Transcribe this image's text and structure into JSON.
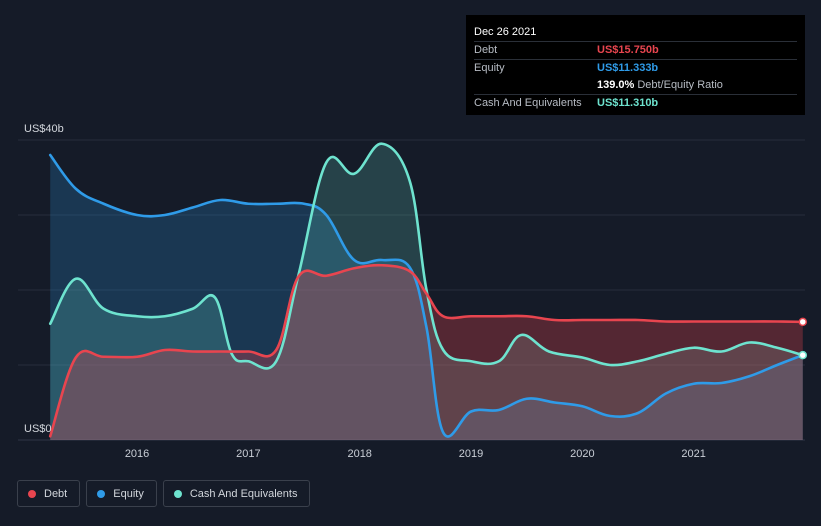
{
  "tooltip": {
    "date": "Dec 26 2021",
    "rows": [
      {
        "label": "Debt",
        "value": "US$15.750b"
      },
      {
        "label": "Equity",
        "value": "US$11.333b"
      },
      {
        "label": "",
        "value": "139.0%",
        "extra": "Debt/Equity Ratio"
      },
      {
        "label": "Cash And Equivalents",
        "value": "US$11.310b"
      }
    ]
  },
  "legend": {
    "items": [
      {
        "label": "Debt",
        "color": "#e8454f"
      },
      {
        "label": "Equity",
        "color": "#2f9be8"
      },
      {
        "label": "Cash And Equivalents",
        "color": "#6ee3cf"
      }
    ]
  },
  "chart_data": {
    "type": "area",
    "y_top_label": "US$40b",
    "y_bottom_label": "US$0",
    "ylim": [
      0,
      40
    ],
    "xlim": [
      2015.2,
      2022.0
    ],
    "x_ticks": [
      2016,
      2017,
      2018,
      2019,
      2020,
      2021
    ],
    "x_tick_labels": [
      "2016",
      "2017",
      "2018",
      "2019",
      "2020",
      "2021"
    ],
    "grid": true,
    "colors": {
      "debt": "#e8454f",
      "equity": "#2f9be8",
      "cash": "#6ee3cf"
    },
    "series": [
      {
        "name": "Debt",
        "key": "debt",
        "x": [
          2015.22,
          2015.45,
          2015.7,
          2016.0,
          2016.25,
          2016.5,
          2016.75,
          2017.0,
          2017.25,
          2017.45,
          2017.7,
          2017.95,
          2018.2,
          2018.45,
          2018.6,
          2018.75,
          2019.0,
          2019.25,
          2019.5,
          2019.75,
          2020.0,
          2020.25,
          2020.5,
          2020.75,
          2021.0,
          2021.25,
          2021.5,
          2021.75,
          2021.98
        ],
        "values": [
          0.5,
          11.0,
          11.1,
          11.1,
          12.0,
          11.8,
          11.8,
          11.8,
          12.0,
          21.8,
          21.9,
          22.9,
          23.3,
          22.5,
          19.5,
          16.5,
          16.5,
          16.5,
          16.5,
          16.0,
          16.0,
          16.0,
          16.0,
          15.8,
          15.8,
          15.8,
          15.8,
          15.8,
          15.75
        ]
      },
      {
        "name": "Equity",
        "key": "equity",
        "x": [
          2015.22,
          2015.45,
          2015.7,
          2016.0,
          2016.25,
          2016.5,
          2016.75,
          2017.0,
          2017.25,
          2017.5,
          2017.7,
          2017.95,
          2018.2,
          2018.45,
          2018.6,
          2018.75,
          2019.0,
          2019.25,
          2019.5,
          2019.75,
          2020.0,
          2020.25,
          2020.5,
          2020.75,
          2021.0,
          2021.25,
          2021.5,
          2021.75,
          2021.98
        ],
        "values": [
          38.0,
          33.5,
          31.5,
          30.0,
          30.0,
          31.0,
          32.0,
          31.5,
          31.5,
          31.5,
          30.0,
          24.0,
          24.0,
          23.0,
          15.0,
          1.0,
          3.8,
          4.0,
          5.5,
          5.0,
          4.5,
          3.2,
          3.6,
          6.2,
          7.5,
          7.6,
          8.5,
          10.0,
          11.33
        ]
      },
      {
        "name": "Cash And Equivalents",
        "key": "cash",
        "x": [
          2015.22,
          2015.45,
          2015.7,
          2016.0,
          2016.25,
          2016.5,
          2016.7,
          2016.85,
          2017.0,
          2017.25,
          2017.45,
          2017.7,
          2017.95,
          2018.2,
          2018.45,
          2018.6,
          2018.75,
          2019.0,
          2019.25,
          2019.45,
          2019.7,
          2020.0,
          2020.25,
          2020.5,
          2020.75,
          2021.0,
          2021.25,
          2021.5,
          2021.75,
          2021.98
        ],
        "values": [
          15.5,
          21.5,
          17.5,
          16.5,
          16.5,
          17.5,
          19.0,
          11.5,
          10.5,
          10.5,
          22.0,
          37.0,
          35.5,
          39.5,
          34.5,
          20.0,
          12.0,
          10.5,
          10.5,
          14.0,
          11.8,
          11.0,
          10.0,
          10.5,
          11.5,
          12.3,
          11.8,
          13.0,
          12.3,
          11.31
        ]
      }
    ]
  }
}
